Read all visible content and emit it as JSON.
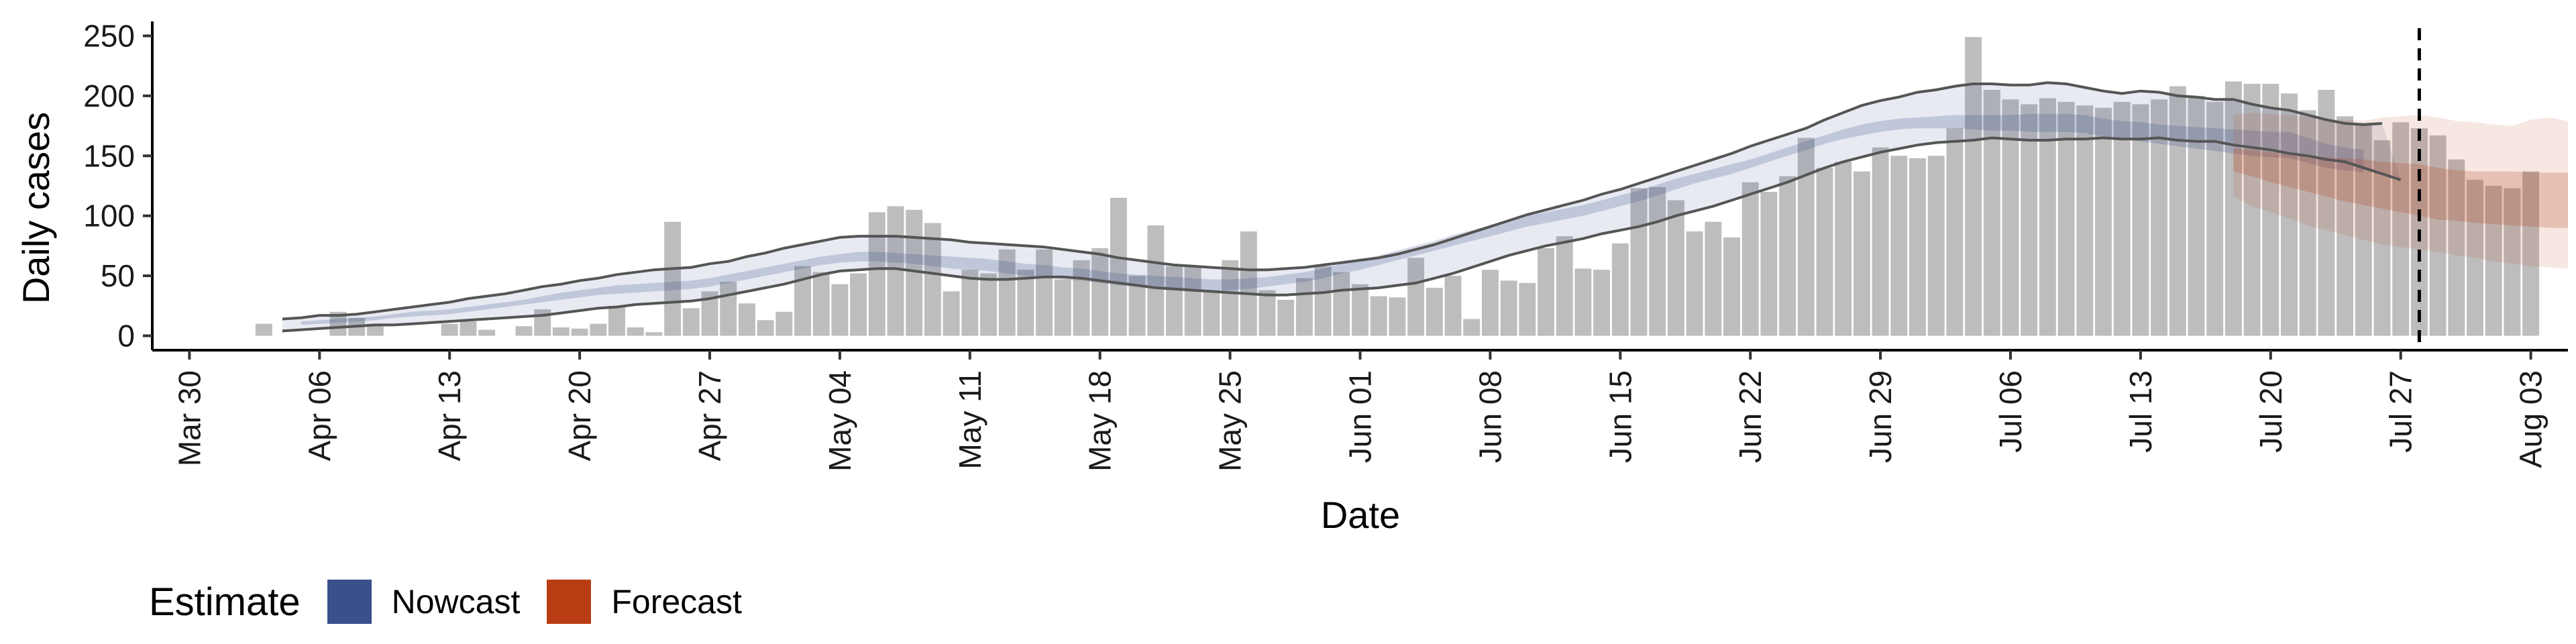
{
  "chart_data": {
    "type": "bar",
    "xlabel": "Date",
    "ylabel": "Daily cases",
    "x_range": [
      "2020-03-28",
      "2020-08-05"
    ],
    "ylim": [
      -12,
      262
    ],
    "y_ticks": [
      0,
      50,
      100,
      150,
      200,
      250
    ],
    "x_ticks": [
      {
        "date": "2020-03-30",
        "label": "Mar 30"
      },
      {
        "date": "2020-04-06",
        "label": "Apr 06"
      },
      {
        "date": "2020-04-13",
        "label": "Apr 13"
      },
      {
        "date": "2020-04-20",
        "label": "Apr 20"
      },
      {
        "date": "2020-04-27",
        "label": "Apr 27"
      },
      {
        "date": "2020-05-04",
        "label": "May 04"
      },
      {
        "date": "2020-05-11",
        "label": "May 11"
      },
      {
        "date": "2020-05-18",
        "label": "May 18"
      },
      {
        "date": "2020-05-25",
        "label": "May 25"
      },
      {
        "date": "2020-06-01",
        "label": "Jun 01"
      },
      {
        "date": "2020-06-08",
        "label": "Jun 08"
      },
      {
        "date": "2020-06-15",
        "label": "Jun 15"
      },
      {
        "date": "2020-06-22",
        "label": "Jun 22"
      },
      {
        "date": "2020-06-29",
        "label": "Jun 29"
      },
      {
        "date": "2020-07-06",
        "label": "Jul 06"
      },
      {
        "date": "2020-07-13",
        "label": "Jul 13"
      },
      {
        "date": "2020-07-20",
        "label": "Jul 20"
      },
      {
        "date": "2020-07-27",
        "label": "Jul 27"
      },
      {
        "date": "2020-08-03",
        "label": "Aug 03"
      }
    ],
    "grid": false,
    "bars": {
      "start_date": "2020-04-03",
      "color": "#bdbdbd",
      "values": [
        10,
        0,
        0,
        0,
        20,
        15,
        10,
        0,
        0,
        0,
        10,
        12,
        5,
        0,
        8,
        22,
        7,
        6,
        10,
        25,
        7,
        3,
        95,
        23,
        37,
        45,
        27,
        13,
        20,
        58,
        53,
        43,
        52,
        103,
        108,
        105,
        94,
        37,
        55,
        52,
        72,
        55,
        72,
        47,
        63,
        73,
        115,
        50,
        92,
        58,
        58,
        38,
        63,
        87,
        38,
        30,
        48,
        58,
        53,
        43,
        33,
        32,
        65,
        40,
        50,
        14,
        55,
        46,
        44,
        73,
        83,
        56,
        55,
        77,
        123,
        124,
        113,
        87,
        95,
        82,
        128,
        120,
        133,
        165,
        140,
        145,
        137,
        157,
        150,
        148,
        150,
        173,
        249,
        205,
        197,
        193,
        198,
        195,
        192,
        190,
        195,
        193,
        197,
        208,
        200,
        195,
        212,
        210,
        210,
        202,
        188,
        205,
        183,
        177,
        163,
        178,
        173,
        167,
        147,
        130,
        125,
        123,
        137
      ]
    },
    "band_outer_upper": {
      "start_date": "2020-04-04",
      "values": [
        14,
        15,
        17,
        17,
        18,
        20,
        22,
        24,
        26,
        28,
        31,
        33,
        35,
        38,
        41,
        43,
        46,
        48,
        51,
        53,
        55,
        56,
        57,
        60,
        62,
        66,
        69,
        73,
        76,
        79,
        82,
        83,
        83,
        83,
        82,
        81,
        80,
        78,
        77,
        76,
        75,
        74,
        72,
        70,
        68,
        65,
        63,
        61,
        59,
        58,
        57,
        56,
        55,
        55,
        56,
        57,
        59,
        61,
        63,
        65,
        68,
        72,
        76,
        81,
        86,
        91,
        96,
        101,
        105,
        109,
        113,
        118,
        122,
        127,
        132,
        137,
        142,
        147,
        152,
        158,
        163,
        168,
        173,
        180,
        186,
        192,
        196,
        199,
        203,
        205,
        208,
        210,
        210,
        209,
        209,
        211,
        210,
        207,
        204,
        202,
        204,
        203,
        200,
        199,
        197,
        197,
        193,
        190,
        188,
        184,
        180,
        177,
        176,
        177
      ]
    },
    "band_outer_lower": {
      "start_date": "2020-04-04",
      "values": [
        4,
        5,
        6,
        7,
        8,
        9,
        9,
        10,
        11,
        12,
        13,
        14,
        15,
        16,
        17,
        19,
        21,
        23,
        24,
        26,
        27,
        28,
        29,
        31,
        34,
        37,
        40,
        43,
        47,
        51,
        54,
        55,
        56,
        56,
        54,
        52,
        50,
        48,
        47,
        47,
        48,
        49,
        49,
        48,
        46,
        44,
        42,
        40,
        39,
        38,
        37,
        36,
        35,
        34,
        34,
        35,
        36,
        38,
        39,
        40,
        42,
        44,
        48,
        52,
        57,
        62,
        67,
        71,
        75,
        78,
        81,
        85,
        88,
        91,
        95,
        100,
        104,
        108,
        113,
        118,
        123,
        128,
        134,
        140,
        145,
        149,
        153,
        156,
        159,
        161,
        162,
        163,
        165,
        164,
        163,
        163,
        164,
        164,
        165,
        164,
        164,
        165,
        163,
        162,
        162,
        159,
        157,
        155,
        152,
        150,
        147,
        145,
        140,
        135,
        130
      ]
    },
    "band_inner_upper": {
      "start_date": "2020-04-05",
      "values": [
        12,
        13,
        14,
        15,
        16,
        18,
        20,
        21,
        22,
        24,
        26,
        28,
        30,
        33,
        36,
        38,
        40,
        42,
        43,
        44,
        45,
        46,
        48,
        51,
        54,
        57,
        60,
        63,
        66,
        68,
        70,
        70,
        69,
        68,
        67,
        66,
        65,
        64,
        62,
        60,
        59,
        57,
        56,
        54,
        52,
        51,
        50,
        49,
        48,
        47,
        47,
        48,
        49,
        51,
        53,
        56,
        60,
        63,
        67,
        71,
        75,
        79,
        84,
        88,
        92,
        96,
        100,
        103,
        106,
        109,
        113,
        117,
        121,
        126,
        131,
        135,
        139,
        143,
        147,
        152,
        157,
        162,
        167,
        172,
        176,
        179,
        181,
        182,
        183,
        184,
        184,
        184,
        184,
        185,
        185,
        185,
        184,
        181,
        179,
        178,
        176,
        175,
        174,
        173,
        172,
        171,
        170,
        170,
        165,
        160,
        157,
        155
      ]
    },
    "band_inner_lower": {
      "start_date": "2020-04-05",
      "values": [
        9,
        10,
        11,
        12,
        13,
        15,
        16,
        17,
        18,
        20,
        22,
        24,
        26,
        28,
        30,
        32,
        34,
        35,
        36,
        37,
        38,
        39,
        41,
        44,
        47,
        50,
        53,
        56,
        59,
        61,
        62,
        62,
        61,
        60,
        58,
        56,
        55,
        54,
        52,
        50,
        49,
        47,
        46,
        44,
        42,
        41,
        40,
        39,
        38,
        38,
        38,
        39,
        41,
        43,
        45,
        48,
        52,
        55,
        59,
        63,
        67,
        71,
        75,
        79,
        83,
        87,
        91,
        94,
        97,
        100,
        104,
        108,
        112,
        117,
        122,
        127,
        131,
        135,
        140,
        145,
        150,
        155,
        160,
        164,
        167,
        170,
        172,
        173,
        173,
        173,
        172,
        171,
        171,
        170,
        170,
        170,
        169,
        166,
        164,
        162,
        160,
        158,
        156,
        154,
        152,
        150,
        149,
        148,
        144,
        140,
        138,
        136
      ]
    },
    "forecast": {
      "start_date": "2020-07-18",
      "outer_upper": [
        184,
        186,
        185,
        184,
        183,
        181,
        180,
        179,
        182,
        183,
        184,
        182,
        179,
        178,
        176,
        175,
        180,
        182,
        179
      ],
      "outer_lower": [
        116,
        108,
        103,
        98,
        92,
        88,
        84,
        80,
        76,
        74,
        72,
        70,
        67,
        65,
        62,
        60,
        58,
        57,
        56
      ],
      "inner_upper": [
        156,
        155,
        153,
        151,
        150,
        149,
        148,
        147,
        145,
        144,
        143,
        140,
        138,
        137,
        137,
        137,
        136,
        136,
        136
      ],
      "inner_lower": [
        137,
        133,
        128,
        124,
        120,
        116,
        112,
        109,
        106,
        103,
        100,
        97,
        96,
        94,
        93,
        92,
        91,
        90,
        90
      ]
    },
    "forecast_date_line": "2020-07-28",
    "series": [
      {
        "name": "Nowcast",
        "color": "#3b4f8c"
      },
      {
        "name": "Forecast",
        "color": "#b83d13"
      }
    ],
    "legend": {
      "title": "Estimate",
      "placement": "bottom-left"
    }
  }
}
